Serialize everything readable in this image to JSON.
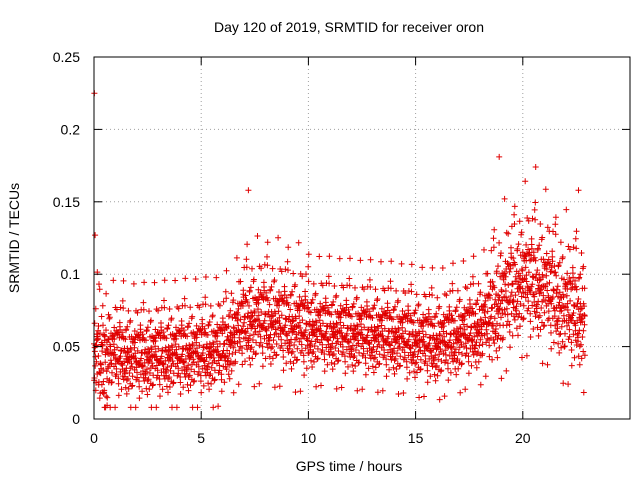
{
  "chart_data": {
    "type": "scatter",
    "title": "Day 120 of 2019, SRMTID for receiver oron",
    "xlabel": "GPS time / hours",
    "ylabel": "SRMTID / TECUs",
    "xlim": [
      0,
      25
    ],
    "ylim": [
      0,
      0.25
    ],
    "xticks": [
      0,
      5,
      10,
      15,
      20
    ],
    "xtick_labels": [
      "0",
      "5",
      "10",
      "15",
      "20"
    ],
    "yticks": [
      0,
      0.05,
      0.1,
      0.15,
      0.2,
      0.25
    ],
    "ytick_labels": [
      "0",
      "0.05",
      "0.1",
      "0.15",
      "0.2",
      "0.25"
    ],
    "grid": true,
    "marker": "+",
    "color": "#e00000",
    "series": [
      {
        "name": "oron",
        "notable_points": [
          {
            "x": 0.02,
            "y": 0.225
          },
          {
            "x": 0.05,
            "y": 0.127
          },
          {
            "x": 18.9,
            "y": 0.181
          },
          {
            "x": 20.6,
            "y": 0.174
          },
          {
            "x": 22.6,
            "y": 0.158
          },
          {
            "x": 7.2,
            "y": 0.158
          }
        ],
        "trend": [
          {
            "x": 0,
            "y": 0.05
          },
          {
            "x": 2,
            "y": 0.045
          },
          {
            "x": 4,
            "y": 0.048
          },
          {
            "x": 6,
            "y": 0.05
          },
          {
            "x": 7,
            "y": 0.07
          },
          {
            "x": 8,
            "y": 0.072
          },
          {
            "x": 10,
            "y": 0.065
          },
          {
            "x": 12,
            "y": 0.062
          },
          {
            "x": 14,
            "y": 0.06
          },
          {
            "x": 16,
            "y": 0.055
          },
          {
            "x": 18,
            "y": 0.065
          },
          {
            "x": 19,
            "y": 0.085
          },
          {
            "x": 20,
            "y": 0.1
          },
          {
            "x": 21,
            "y": 0.095
          },
          {
            "x": 22,
            "y": 0.08
          },
          {
            "x": 22.9,
            "y": 0.075
          }
        ],
        "spread": 0.018,
        "x_range": [
          0,
          22.9
        ],
        "n_points": 2600
      }
    ]
  }
}
